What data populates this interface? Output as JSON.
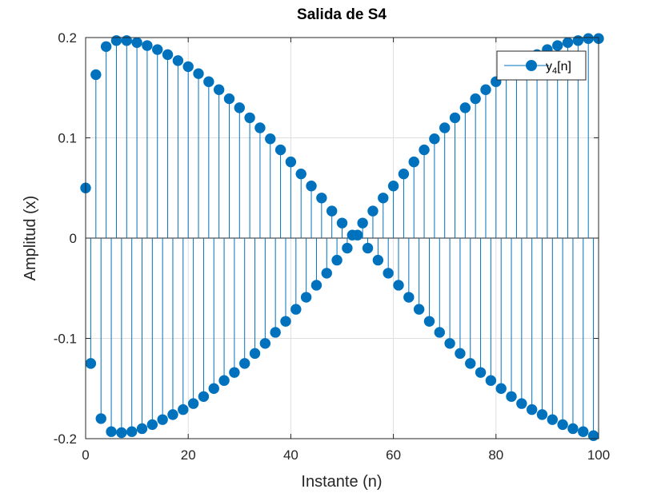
{
  "chart_data": {
    "type": "stem",
    "title": "Salida de S4",
    "xlabel": "Instante (n)",
    "ylabel": "Amplitud (x)",
    "xlim": [
      0,
      100
    ],
    "ylim": [
      -0.2,
      0.2
    ],
    "xticks": [
      "0",
      "20",
      "40",
      "60",
      "80",
      "100"
    ],
    "yticks": [
      "-0.2",
      "-0.1",
      "0",
      "0.1",
      "0.2"
    ],
    "grid": true,
    "legend": {
      "location": "top-right",
      "label": "y",
      "label_sub": "4",
      "label_suffix": "[n]"
    },
    "series": [
      {
        "name": "y4[n]",
        "color": "#0072BD",
        "x": [
          0,
          1,
          2,
          3,
          4,
          5,
          6,
          7,
          8,
          9,
          10,
          11,
          12,
          13,
          14,
          15,
          16,
          17,
          18,
          19,
          20,
          21,
          22,
          23,
          24,
          25,
          26,
          27,
          28,
          29,
          30,
          31,
          32,
          33,
          34,
          35,
          36,
          37,
          38,
          39,
          40,
          41,
          42,
          43,
          44,
          45,
          46,
          47,
          48,
          49,
          50,
          51,
          52,
          53,
          54,
          55,
          56,
          57,
          58,
          59,
          60,
          61,
          62,
          63,
          64,
          65,
          66,
          67,
          68,
          69,
          70,
          71,
          72,
          73,
          74,
          75,
          76,
          77,
          78,
          79,
          80,
          81,
          82,
          83,
          84,
          85,
          86,
          87,
          88,
          89,
          90,
          91,
          92,
          93,
          94,
          95,
          96,
          97,
          98,
          99,
          100
        ],
        "values": [
          0.05,
          -0.125,
          0.163,
          -0.18,
          0.191,
          -0.193,
          0.197,
          -0.194,
          0.197,
          -0.193,
          0.195,
          -0.19,
          0.192,
          -0.186,
          0.188,
          -0.181,
          0.183,
          -0.176,
          0.177,
          -0.171,
          0.171,
          -0.165,
          0.164,
          -0.158,
          0.156,
          -0.15,
          0.148,
          -0.142,
          0.139,
          -0.134,
          0.13,
          -0.125,
          0.12,
          -0.115,
          0.11,
          -0.105,
          0.099,
          -0.094,
          0.088,
          -0.083,
          0.076,
          -0.071,
          0.064,
          -0.059,
          0.052,
          -0.047,
          0.04,
          -0.035,
          0.027,
          -0.022,
          0.015,
          -0.01,
          0.003,
          0.003,
          0.015,
          -0.01,
          0.027,
          -0.022,
          0.04,
          -0.035,
          0.052,
          -0.047,
          0.064,
          -0.059,
          0.076,
          -0.071,
          0.088,
          -0.083,
          0.099,
          -0.094,
          0.11,
          -0.105,
          0.12,
          -0.115,
          0.13,
          -0.125,
          0.139,
          -0.134,
          0.148,
          -0.142,
          0.156,
          -0.15,
          0.164,
          -0.158,
          0.171,
          -0.165,
          0.177,
          -0.171,
          0.183,
          -0.176,
          0.188,
          -0.181,
          0.192,
          -0.186,
          0.195,
          -0.19,
          0.197,
          -0.193,
          0.199,
          -0.197,
          0.199
        ]
      }
    ]
  }
}
